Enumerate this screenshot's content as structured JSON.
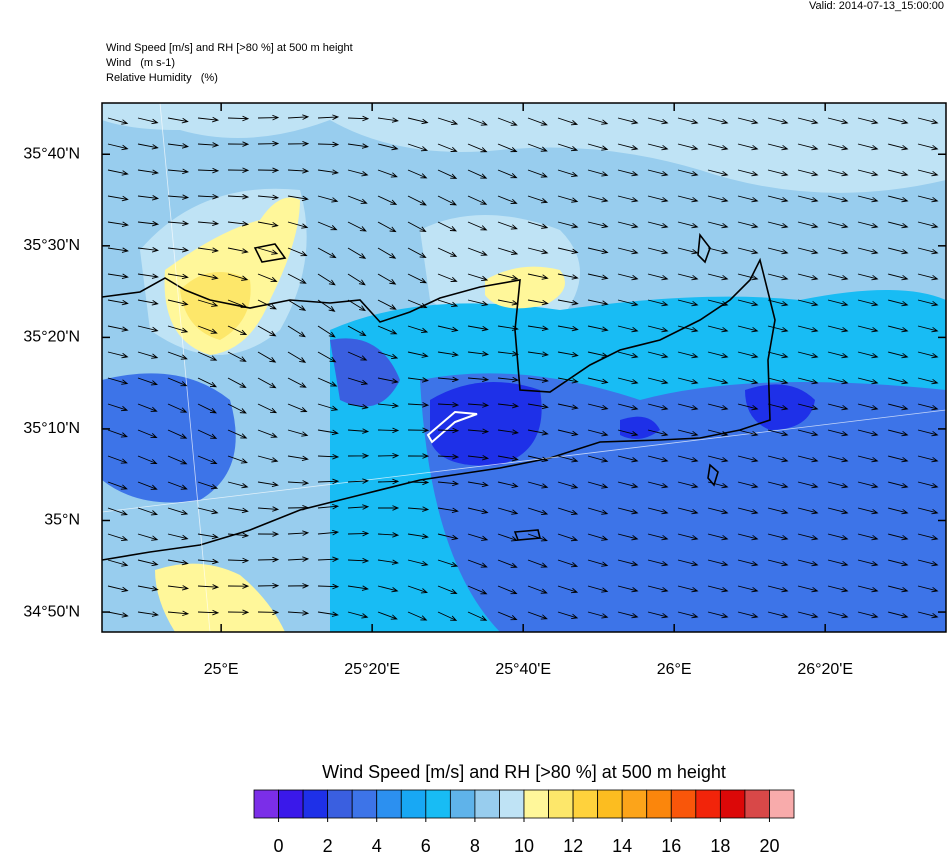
{
  "valid": "Valid: 2014-07-13_15:00:00",
  "header": [
    "Wind Speed [m/s] and RH [>80 %] at 500 m height",
    "Wind   (m s-1)",
    "Relative Humidity   (%)"
  ],
  "map": {
    "lon_range": [
      24.737,
      26.6
    ],
    "lat_range": [
      34.797,
      35.76
    ],
    "lon_ticks": [
      {
        "value": 25,
        "label": "25°E"
      },
      {
        "value": 25.3333,
        "label": "25°20'E"
      },
      {
        "value": 25.6667,
        "label": "25°40'E"
      },
      {
        "value": 26,
        "label": "26°E"
      },
      {
        "value": 26.3333,
        "label": "26°20'E"
      }
    ],
    "lat_ticks": [
      {
        "value": 35.6667,
        "label": "35°40'N"
      },
      {
        "value": 35.5,
        "label": "35°30'N"
      },
      {
        "value": 35.3333,
        "label": "35°20'N"
      },
      {
        "value": 35.1667,
        "label": "35°10'N"
      },
      {
        "value": 35,
        "label": "35°N"
      },
      {
        "value": 34.8333,
        "label": "34°50'N"
      }
    ]
  },
  "colorbar": {
    "title": "Wind Speed [m/s] and RH [>80 %] at 500 m height",
    "range": [
      -1,
      21
    ],
    "ticks": [
      0,
      2,
      4,
      6,
      8,
      10,
      12,
      14,
      16,
      18,
      20
    ],
    "colors": [
      "#7b2ee8",
      "#3a18ea",
      "#1e30e8",
      "#3a5fe0",
      "#3d74e8",
      "#2c90f0",
      "#18a8f4",
      "#18bcf4",
      "#5fb3ea",
      "#98cdee",
      "#bfe3f5",
      "#fff79a",
      "#fde76a",
      "#ffd23c",
      "#fcbd20",
      "#fca41a",
      "#fb860c",
      "#f9560a",
      "#f2240a",
      "#dc0808",
      "#d84848",
      "#f8abab"
    ]
  }
}
